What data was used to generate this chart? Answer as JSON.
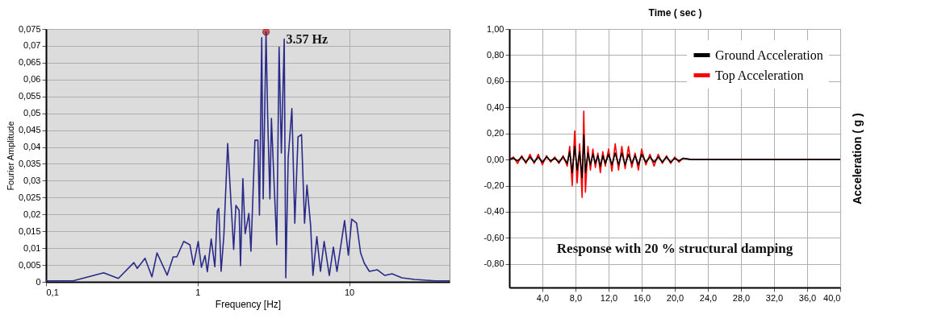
{
  "chart_data": [
    {
      "type": "line",
      "xlabel": "Frequency [Hz]",
      "ylabel": "Fourier Amplitude",
      "log": "x",
      "grid": true,
      "xlim": [
        0.1,
        46
      ],
      "xticks": [
        {
          "value": 0.1,
          "label": "0,1"
        },
        1,
        10
      ],
      "ylim": [
        0,
        0.075
      ],
      "yticks": [
        0,
        {
          "value": 0.005,
          "label": "0,005"
        },
        {
          "value": 0.01,
          "label": "0,01"
        },
        {
          "value": 0.015,
          "label": "0,015"
        },
        {
          "value": 0.02,
          "label": "0,02"
        },
        {
          "value": 0.025,
          "label": "0,025"
        },
        {
          "value": 0.03,
          "label": "0,03"
        },
        {
          "value": 0.035,
          "label": "0,035"
        },
        {
          "value": 0.04,
          "label": "0,04"
        },
        {
          "value": 0.045,
          "label": "0,045"
        },
        {
          "value": 0.05,
          "label": "0,05"
        },
        {
          "value": 0.055,
          "label": "0,055"
        },
        {
          "value": 0.06,
          "label": "0,06"
        },
        {
          "value": 0.065,
          "label": "0,065"
        },
        {
          "value": 0.07,
          "label": "0,07"
        },
        {
          "value": 0.075,
          "label": "0,075"
        }
      ],
      "series": [
        {
          "color": "#2a2a8a",
          "x": [
            0.1,
            0.151,
            0.24,
            0.3,
            0.38,
            0.4,
            0.45,
            0.5,
            0.54,
            0.63,
            0.69,
            0.73,
            0.81,
            0.89,
            0.94,
            1.01,
            1.06,
            1.12,
            1.16,
            1.23,
            1.3,
            1.35,
            1.38,
            1.43,
            1.49,
            1.58,
            1.73,
            1.79,
            1.88,
            1.92,
            1.99,
            2.06,
            2.18,
            2.25,
            2.39,
            2.5,
            2.56,
            2.65,
            2.71,
            2.83,
            2.9,
            3.0,
            3.07,
            3.18,
            3.33,
            3.45,
            3.57,
            3.73,
            3.82,
            3.96,
            4.19,
            4.38,
            4.6,
            4.85,
            5.08,
            5.27,
            5.57,
            5.77,
            6.12,
            6.47,
            6.84,
            7.4,
            7.87,
            8.31,
            9.33,
            9.88,
            10.4,
            11.2,
            11.9,
            12.6,
            13.6,
            15.3,
            17.2,
            19.2,
            22.3,
            27.1,
            36.9,
            46
          ],
          "values": [
            0.0003,
            0.0003,
            0.0027,
            0.001,
            0.0057,
            0.004,
            0.007,
            0.0015,
            0.0086,
            0.002,
            0.0074,
            0.0074,
            0.012,
            0.011,
            0.005,
            0.012,
            0.0043,
            0.0078,
            0.003,
            0.0127,
            0.0045,
            0.021,
            0.0218,
            0.0031,
            0.0135,
            0.041,
            0.0096,
            0.0227,
            0.0212,
            0.0048,
            0.0306,
            0.0143,
            0.0203,
            0.0091,
            0.042,
            0.042,
            0.0198,
            0.0724,
            0.0246,
            0.0741,
            0.0492,
            0.0246,
            0.0485,
            0.0318,
            0.011,
            0.0696,
            0.0382,
            0.072,
            0.0012,
            0.0366,
            0.0514,
            0.0174,
            0.043,
            0.0437,
            0.0174,
            0.0287,
            0.0167,
            0.0019,
            0.0134,
            0.0031,
            0.012,
            0.0019,
            0.0103,
            0.0031,
            0.0182,
            0.0079,
            0.0186,
            0.0174,
            0.0086,
            0.0055,
            0.0031,
            0.0036,
            0.0019,
            0.0024,
            0.0012,
            0.0007,
            0.0003,
            0.0003
          ]
        },
        {
          "type": "scatter",
          "marker": "circle",
          "color": "#d01010",
          "x": [
            2.83
          ],
          "values": [
            0.0741
          ]
        }
      ],
      "annotations": [
        {
          "text": "3.57 Hz",
          "x": 3.57,
          "y": 0.072
        }
      ]
    },
    {
      "type": "line",
      "xlabel": "Time ( sec )",
      "ylabel": "Acceleration ( g )",
      "grid": true,
      "legend": "top right",
      "xlim": [
        0,
        40
      ],
      "xticks": [
        {
          "value": 4,
          "label": "4,0"
        },
        {
          "value": 8,
          "label": "8,0"
        },
        {
          "value": 12,
          "label": "12,0"
        },
        {
          "value": 16,
          "label": "16,0"
        },
        {
          "value": 20,
          "label": "20,0"
        },
        {
          "value": 24,
          "label": "24,0"
        },
        {
          "value": 28,
          "label": "28,0"
        },
        {
          "value": 32,
          "label": "32,0"
        },
        {
          "value": 36,
          "label": "36,0"
        },
        {
          "value": 40,
          "label": "40,0"
        }
      ],
      "ylim": [
        -0.98,
        1.0
      ],
      "yticks": [
        {
          "value": -0.8,
          "label": "-0,80"
        },
        {
          "value": -0.6,
          "label": "-0,60"
        },
        {
          "value": -0.4,
          "label": "-0,40"
        },
        {
          "value": -0.2,
          "label": "-0,20"
        },
        {
          "value": 0,
          "label": "0,00"
        },
        {
          "value": 0.2,
          "label": "0,20"
        },
        {
          "value": 0.4,
          "label": "0,40"
        },
        {
          "value": 0.6,
          "label": "0,60"
        },
        {
          "value": 0.8,
          "label": "0,80"
        },
        {
          "value": 1.0,
          "label": "1,00"
        }
      ],
      "x": [
        0,
        0.5,
        1,
        1.5,
        2,
        2.5,
        3,
        3.5,
        4,
        4.5,
        5,
        5.5,
        6,
        6.5,
        7,
        7.3,
        7.6,
        7.9,
        8.2,
        8.5,
        8.8,
        9.0,
        9.2,
        9.5,
        9.8,
        10.1,
        10.4,
        10.7,
        11,
        11.3,
        11.6,
        12,
        12.4,
        12.8,
        13.2,
        13.6,
        14,
        14.4,
        14.8,
        15.2,
        15.6,
        16,
        16.5,
        17,
        17.5,
        18,
        18.5,
        19,
        19.5,
        20,
        20.5,
        21,
        22,
        40
      ],
      "series": [
        {
          "name": "Ground Acceleration",
          "color": "#000000",
          "values": [
            0,
            0.01,
            -0.01,
            0.02,
            -0.02,
            0.02,
            -0.02,
            0.02,
            -0.02,
            0.02,
            -0.01,
            0.01,
            -0.02,
            0.02,
            -0.03,
            0.06,
            -0.1,
            0.1,
            -0.08,
            0.06,
            -0.14,
            0.19,
            -0.1,
            0.05,
            -0.04,
            0.04,
            -0.03,
            0.03,
            -0.05,
            0.03,
            -0.03,
            0.04,
            -0.04,
            0.05,
            -0.04,
            0.05,
            -0.04,
            0.04,
            -0.03,
            0.03,
            -0.04,
            0.04,
            -0.02,
            0.02,
            -0.02,
            0.02,
            -0.02,
            0.02,
            -0.02,
            0.01,
            -0.01,
            0.01,
            0,
            0
          ]
        },
        {
          "name": "Top Acceleration",
          "color": "#ff0000",
          "values": [
            0,
            0.02,
            -0.03,
            0.03,
            -0.03,
            0.04,
            -0.03,
            0.04,
            -0.04,
            0.03,
            -0.02,
            0.02,
            -0.03,
            0.03,
            -0.05,
            0.1,
            -0.2,
            0.22,
            -0.18,
            0.12,
            -0.29,
            0.37,
            -0.25,
            0.1,
            -0.08,
            0.08,
            -0.06,
            0.05,
            -0.1,
            0.06,
            -0.05,
            0.08,
            -0.09,
            0.12,
            -0.08,
            0.1,
            -0.07,
            0.1,
            -0.06,
            0.05,
            -0.08,
            0.08,
            -0.04,
            0.04,
            -0.05,
            0.04,
            -0.03,
            0.03,
            -0.03,
            0.02,
            -0.02,
            0.01,
            0,
            0
          ]
        }
      ],
      "annotations": [
        "Response with 20 % structural damping"
      ]
    }
  ]
}
